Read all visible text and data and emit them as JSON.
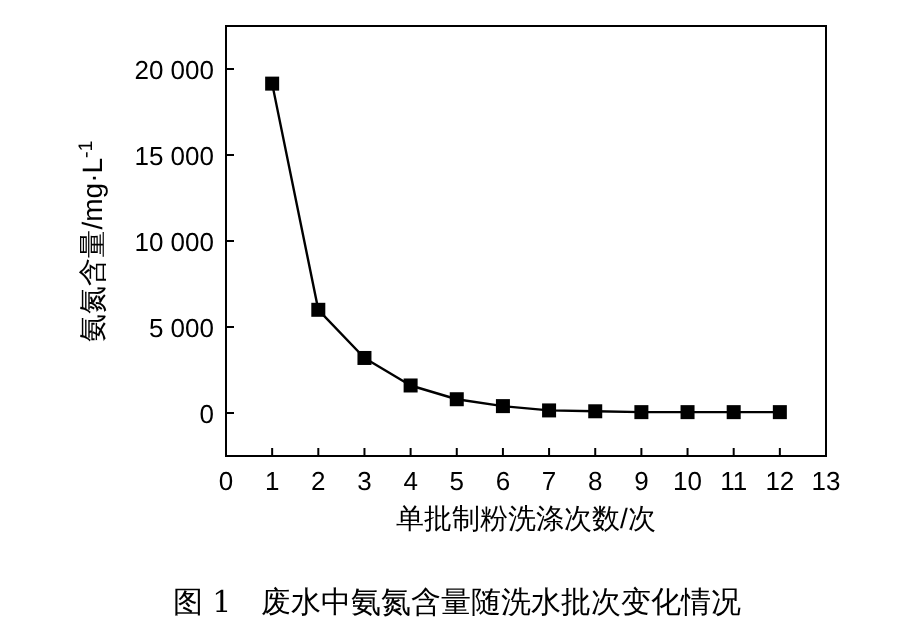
{
  "chart_data": {
    "type": "line",
    "xlabel": "单批制粉洗涤次数/次",
    "ylabel": "氨氮含量/mg·L$^{-1}$",
    "annotations": [
      "图 1　废水中氨氮含量随洗水批次变化情况"
    ],
    "x": [
      1,
      2,
      3,
      4,
      5,
      6,
      7,
      8,
      9,
      10,
      11,
      12
    ],
    "values": [
      19150,
      6000,
      3200,
      1600,
      800,
      400,
      150,
      100,
      50,
      50,
      50,
      50
    ],
    "color": "#000000",
    "marker": "square",
    "xlim": [
      0,
      13
    ],
    "ylim": [
      -2500,
      22500
    ],
    "xticks": [
      0,
      1,
      2,
      3,
      4,
      5,
      6,
      7,
      8,
      9,
      10,
      11,
      12,
      13
    ],
    "yticks": [
      0,
      {
        "value": 5000,
        "label": "5 000"
      },
      {
        "value": 10000,
        "label": "10 000"
      },
      {
        "value": 15000,
        "label": "15 000"
      },
      {
        "value": 20000,
        "label": "20 000"
      }
    ]
  }
}
